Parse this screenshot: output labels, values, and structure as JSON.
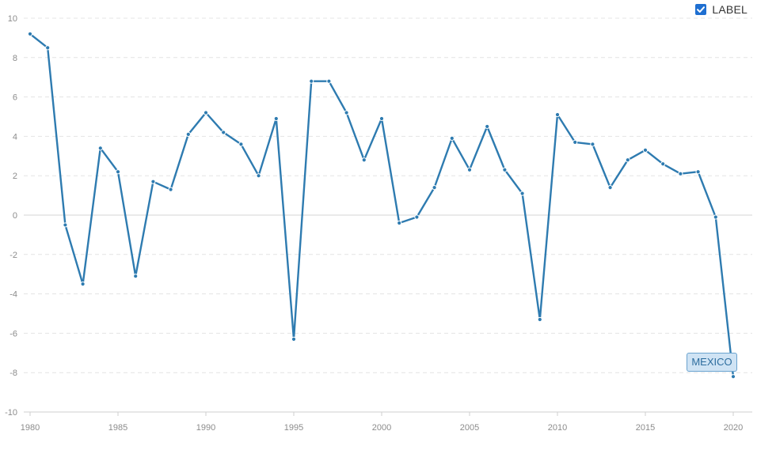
{
  "legend": {
    "label": "LABEL",
    "checked": true
  },
  "series_tag": "MEXICO",
  "colors": {
    "series": "#2e7bb0",
    "checkbox": "#1f6fd1"
  },
  "chart_data": {
    "type": "line",
    "title": "",
    "xlabel": "",
    "ylabel": "",
    "xlim": [
      1980,
      2020
    ],
    "ylim": [
      -10,
      10
    ],
    "x_ticks": [
      1980,
      1985,
      1990,
      1995,
      2000,
      2005,
      2010,
      2015,
      2020
    ],
    "y_ticks": [
      10,
      8,
      6,
      4,
      2,
      0,
      -2,
      -4,
      -6,
      -8,
      -10
    ],
    "grid": true,
    "legend_position": "top-right",
    "x": [
      1980,
      1981,
      1982,
      1983,
      1984,
      1985,
      1986,
      1987,
      1988,
      1989,
      1990,
      1991,
      1992,
      1993,
      1994,
      1995,
      1996,
      1997,
      1998,
      1999,
      2000,
      2001,
      2002,
      2003,
      2004,
      2005,
      2006,
      2007,
      2008,
      2009,
      2010,
      2011,
      2012,
      2013,
      2014,
      2015,
      2016,
      2017,
      2018,
      2019,
      2020
    ],
    "series": [
      {
        "name": "MEXICO",
        "values": [
          9.2,
          8.5,
          -0.5,
          -3.5,
          3.4,
          2.2,
          -3.1,
          1.7,
          1.3,
          4.1,
          5.2,
          4.2,
          3.6,
          2.0,
          4.9,
          -6.3,
          6.8,
          6.8,
          5.2,
          2.8,
          4.9,
          -0.4,
          -0.1,
          1.4,
          3.9,
          2.3,
          4.5,
          2.3,
          1.1,
          -5.3,
          5.1,
          3.7,
          3.6,
          1.4,
          2.8,
          3.3,
          2.6,
          2.1,
          2.2,
          -0.1,
          -8.2
        ]
      }
    ]
  }
}
